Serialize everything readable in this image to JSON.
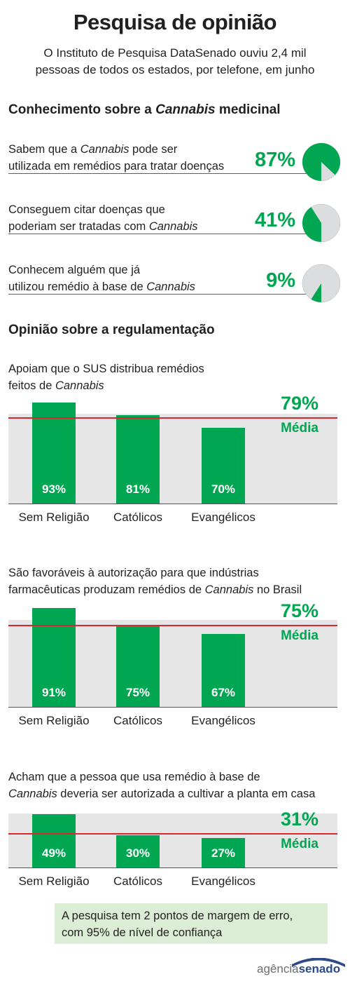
{
  "header": {
    "title": "Pesquisa de opinião",
    "subtitle_line1": "O Instituto de Pesquisa DataSenado ouviu 2,4 mil",
    "subtitle_line2": "pessoas de todos os estados, por telefone, em junho"
  },
  "knowledge": {
    "heading_prefix": "Conhecimento sobre a ",
    "heading_italic": "Cannabis",
    "heading_suffix": " medicinal",
    "items": [
      {
        "line1_a": "Sabem que a ",
        "line1_i": "Cannabis",
        "line1_b": " pode ser",
        "line2_a": "utilizada em remédios para tratar doenças",
        "line2_i": "",
        "line2_b": "",
        "pct_label": "87%",
        "value": 87
      },
      {
        "line1_a": "Conseguem citar doenças que",
        "line1_i": "",
        "line1_b": "",
        "line2_a": "poderiam ser tratadas com ",
        "line2_i": "Cannabis",
        "line2_b": "",
        "pct_label": "41%",
        "value": 41
      },
      {
        "line1_a": "Conhecem alguém que já",
        "line1_i": "",
        "line1_b": "",
        "line2_a": "utilizou remédio à base de ",
        "line2_i": "Cannabis",
        "line2_b": "",
        "pct_label": "9%",
        "value": 9
      }
    ]
  },
  "regulation_heading": "Opinião sobre a regulamentação",
  "chart_data": [
    {
      "type": "bar",
      "question_line1_a": "Apoiam que o SUS distribua remédios",
      "question_line1_i": "",
      "question_line1_b": "",
      "question_line2_a": "feitos de ",
      "question_line2_i": "Cannabis",
      "question_line2_b": "",
      "categories": [
        "Sem Religião",
        "Católicos",
        "Evangélicos"
      ],
      "values": [
        93,
        81,
        70
      ],
      "value_labels": [
        "93%",
        "81%",
        "70%"
      ],
      "average": 79,
      "average_label": "79%",
      "average_caption": "Média"
    },
    {
      "type": "bar",
      "question_line1_a": "São favoráveis à autorização para que indústrias",
      "question_line1_i": "",
      "question_line1_b": "",
      "question_line2_a": "farmacêuticas produzam remédios de ",
      "question_line2_i": "Cannabis",
      "question_line2_b": " no Brasil",
      "categories": [
        "Sem Religião",
        "Católicos",
        "Evangélicos"
      ],
      "values": [
        91,
        75,
        67
      ],
      "value_labels": [
        "91%",
        "75%",
        "67%"
      ],
      "average": 75,
      "average_label": "75%",
      "average_caption": "Média"
    },
    {
      "type": "bar",
      "question_line1_a": "Acham que a pessoa que usa remédio à base de",
      "question_line1_i": "",
      "question_line1_b": "",
      "question_line2_a": "",
      "question_line2_i": "Cannabis",
      "question_line2_b": " deveria ser autorizada a cultivar a planta em casa",
      "categories": [
        "Sem Religião",
        "Católicos",
        "Evangélicos"
      ],
      "values": [
        49,
        30,
        27
      ],
      "value_labels": [
        "49%",
        "30%",
        "27%"
      ],
      "average": 31,
      "average_label": "31%",
      "average_caption": "Média"
    }
  ],
  "note": {
    "line1": "A pesquisa tem 2 pontos de margem de erro,",
    "line2": "com 95% de nível de confiança"
  },
  "logo": {
    "part1": "agência",
    "part2": "senado"
  },
  "colors": {
    "green": "#00a651",
    "red": "#d7282f",
    "gray_bg": "#e6e6e7",
    "note_bg": "#dcedd5"
  }
}
